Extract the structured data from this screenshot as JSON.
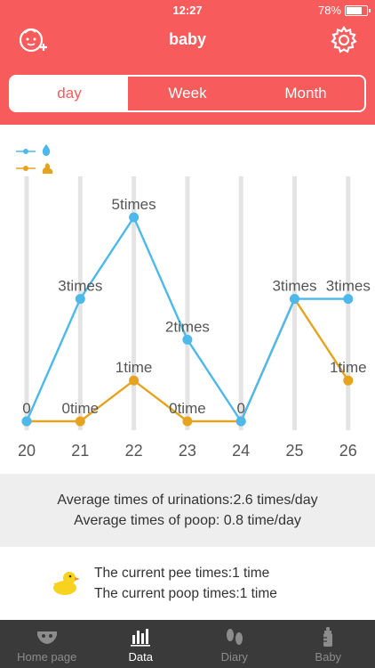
{
  "status": {
    "time": "12:27",
    "battery": "78%",
    "battery_level": 0.78
  },
  "nav": {
    "title": "baby",
    "left_icon": "baby-add-icon",
    "right_icon": "gear-icon"
  },
  "segments": [
    {
      "label": "day",
      "active": true
    },
    {
      "label": "Week",
      "active": false
    },
    {
      "label": "Month",
      "active": false
    }
  ],
  "chart_data": {
    "type": "line",
    "categories": [
      "20",
      "21",
      "22",
      "23",
      "24",
      "25",
      "26"
    ],
    "ylim": [
      0,
      5
    ],
    "grid": "vertical",
    "legend": "top-left",
    "series": [
      {
        "icon": "water-drop-icon",
        "color": "#4db8ec",
        "values": [
          0,
          3,
          5,
          2,
          0,
          3,
          3
        ],
        "labels": [
          "0",
          "3times",
          "5times",
          "2times",
          "0",
          "3times",
          "3times"
        ]
      },
      {
        "icon": "poop-icon",
        "color": "#e6a320",
        "values": [
          0,
          0,
          1,
          0,
          0,
          3,
          1
        ],
        "labels": [
          "",
          "0time",
          "1time",
          "0time",
          "",
          "",
          "1time"
        ]
      }
    ]
  },
  "summary": {
    "urination": "Average times of urinations:2.6 times/day",
    "poop": "Average times of poop: 0.8 time/day"
  },
  "current": {
    "icon": "duck-icon",
    "pee": "The current pee times:1 time",
    "poop": "The current poop times:1 time"
  },
  "tabs": [
    {
      "label": "Home page",
      "icon": "home-diaper-icon",
      "active": false
    },
    {
      "label": "Data",
      "icon": "bar-chart-icon",
      "active": true
    },
    {
      "label": "Diary",
      "icon": "footprints-icon",
      "active": false
    },
    {
      "label": "Baby",
      "icon": "baby-bottle-icon",
      "active": false
    }
  ]
}
